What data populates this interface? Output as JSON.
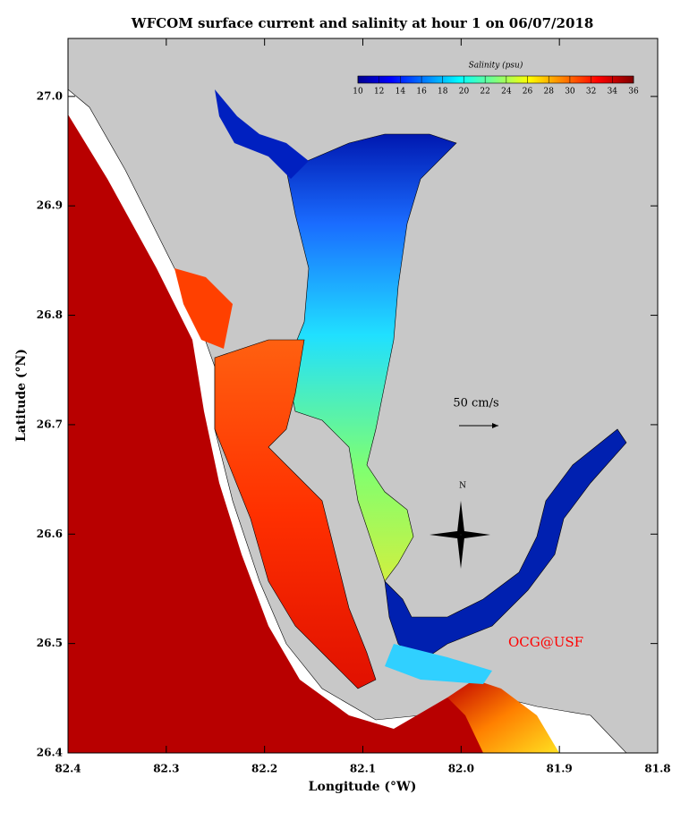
{
  "title": "WFCOM surface current and salinity at hour 1 on 06/07/2018",
  "map": {
    "xlabel": "Longitude (°W)",
    "ylabel": "Latitude (°N)",
    "xlim": [
      82.4,
      81.8
    ],
    "ylim": [
      26.4,
      27.053
    ],
    "xticks": [
      82.4,
      82.3,
      82.2,
      82.1,
      {
        "value": 82.0,
        "label": "82.0"
      },
      81.9,
      81.8
    ],
    "yticks": [
      26.4,
      26.5,
      26.6,
      26.7,
      26.8,
      26.9,
      {
        "value": 27.0,
        "label": "27.0"
      }
    ]
  },
  "colorbar": {
    "title": "Salinity (psu)",
    "lim": [
      10,
      36
    ],
    "ticks": [
      10,
      12,
      14,
      16,
      18,
      20,
      22,
      24,
      26,
      28,
      30,
      32,
      34,
      36
    ]
  },
  "annotations": {
    "scale": "50 cm/s",
    "north": "N",
    "credit": "OCG@USF"
  }
}
